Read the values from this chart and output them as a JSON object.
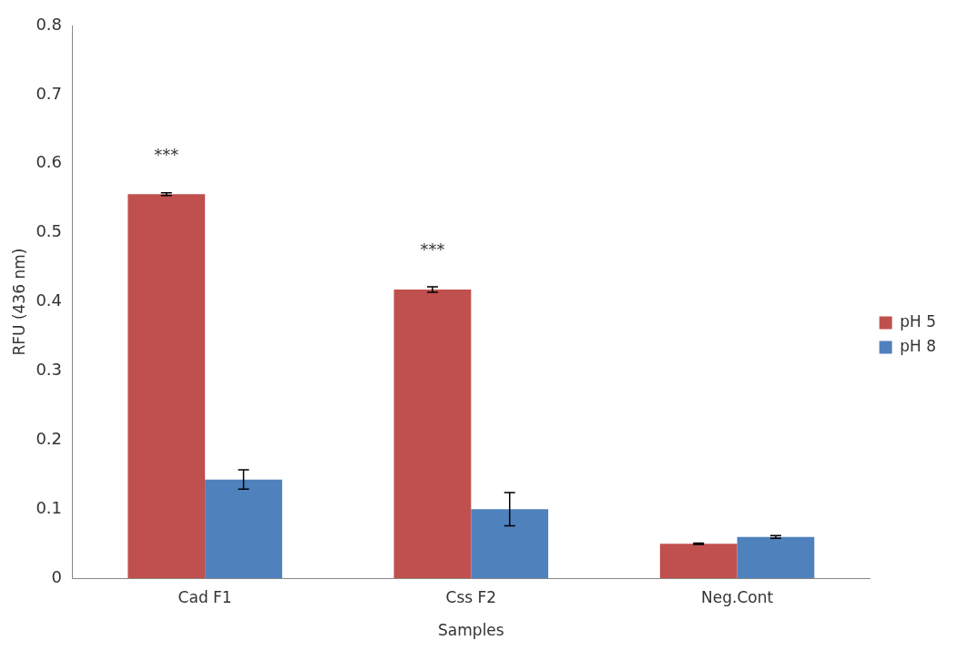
{
  "chart_data": {
    "type": "bar",
    "xlabel": "Samples",
    "ylabel": "RFU (436 nm)",
    "categories": [
      "Cad F1",
      "Css F2",
      "Neg.Cont"
    ],
    "series": [
      {
        "name": "pH 5",
        "color": "#c0504d",
        "values": [
          0.556,
          0.418,
          0.05
        ],
        "errors": [
          0.002,
          0.004,
          0.001
        ]
      },
      {
        "name": "pH 8",
        "color": "#4f81bd",
        "values": [
          0.143,
          0.1,
          0.06
        ],
        "errors": [
          0.014,
          0.024,
          0.002
        ]
      }
    ],
    "ylim": [
      0,
      0.8
    ],
    "yticks": [
      0,
      0.1,
      0.2,
      0.3,
      0.4,
      0.5,
      0.6,
      0.7,
      0.8
    ],
    "grid": false,
    "legend": "right",
    "annotations": [
      "***",
      "***"
    ]
  }
}
